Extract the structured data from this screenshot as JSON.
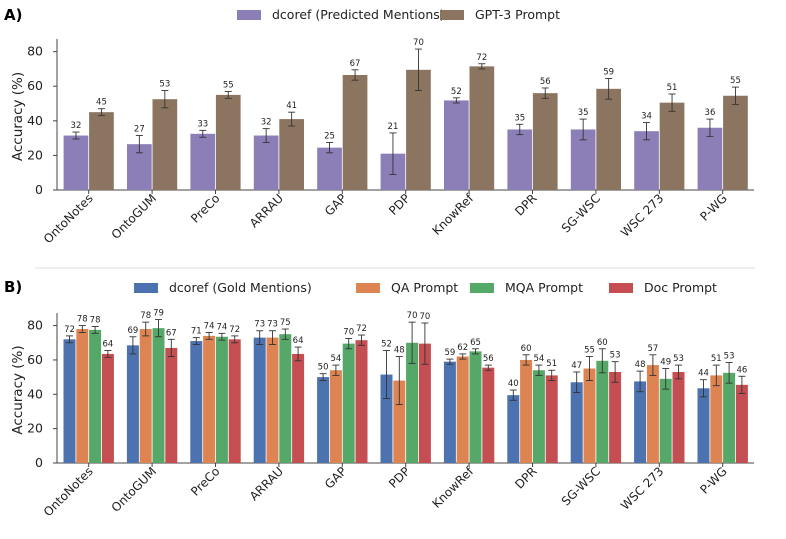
{
  "figure": {
    "separator": true
  },
  "chart_data": [
    {
      "type": "bar",
      "panel_label": "A)",
      "categories": [
        "OntoNotes",
        "OntoGUM",
        "PreCo",
        "ARRAU",
        "GAP",
        "PDP",
        "KnowRef",
        "DPR",
        "SG-WSC",
        "WSC 273",
        "P-WG"
      ],
      "series": [
        {
          "name": "dcoref (Predicted Mentions)",
          "color": "#8c7fb8",
          "values": [
            31.5,
            26.5,
            32.5,
            31.5,
            24.5,
            21,
            51.8,
            35,
            35,
            34,
            36
          ],
          "labels": [
            "32",
            "27",
            "33",
            "32",
            "25",
            "21",
            "52",
            "35",
            "35",
            "34",
            "36"
          ],
          "errors": [
            2,
            5,
            2,
            4,
            3,
            12,
            1.5,
            3,
            6,
            5,
            5
          ]
        },
        {
          "name": "GPT-3 Prompt",
          "color": "#8b7560",
          "values": [
            45,
            52.5,
            55,
            41,
            66.5,
            69.5,
            71.5,
            56,
            58.5,
            50.5,
            54.5
          ],
          "labels": [
            "45",
            "53",
            "55",
            "41",
            "67",
            "70",
            "72",
            "56",
            "59",
            "51",
            "55"
          ],
          "errors": [
            2,
            5,
            2,
            4,
            3,
            12,
            1.5,
            3,
            6,
            5,
            5
          ]
        }
      ],
      "ylabel": "Accuracy (%)",
      "ylim": [
        0,
        85
      ],
      "yticks": [
        0,
        20,
        40,
        60,
        80
      ],
      "legend": "top-center"
    },
    {
      "type": "bar",
      "panel_label": "B)",
      "categories": [
        "OntoNotes",
        "OntoGUM",
        "PreCo",
        "ARRAU",
        "GAP",
        "PDP",
        "KnowRef",
        "DPR",
        "SG-WSC",
        "WSC 273",
        "P-WG"
      ],
      "series": [
        {
          "name": "dcoref (Gold Mentions)",
          "color": "#4c72b0",
          "values": [
            72,
            68.5,
            71,
            73,
            50,
            51.5,
            59,
            39.5,
            47,
            47.5,
            43.5
          ],
          "labels": [
            "72",
            "69",
            "71",
            "73",
            "50",
            "52",
            "59",
            "40",
            "47",
            "48",
            "44"
          ],
          "errors": [
            2,
            5,
            2,
            4,
            2,
            14,
            1.5,
            3,
            6,
            6,
            5
          ]
        },
        {
          "name": "QA Prompt",
          "color": "#dd8452",
          "values": [
            78,
            78,
            74,
            73,
            54,
            48,
            62,
            60,
            55,
            57,
            51
          ],
          "labels": [
            "78",
            "78",
            "74",
            "73",
            "54",
            "48",
            "62",
            "60",
            "55",
            "57",
            "51"
          ],
          "errors": [
            2,
            4,
            2,
            4,
            3,
            14,
            1.5,
            3,
            7,
            6,
            6
          ]
        },
        {
          "name": "MQA Prompt",
          "color": "#55a868",
          "values": [
            77.5,
            78.5,
            73.5,
            75,
            69.5,
            70,
            65,
            54,
            59.5,
            49,
            52.5
          ],
          "labels": [
            "78",
            "79",
            "74",
            "75",
            "70",
            "70",
            "65",
            "54",
            "60",
            "49",
            "53"
          ],
          "errors": [
            2,
            5,
            2,
            3,
            3,
            12,
            1.5,
            3,
            7,
            6,
            6
          ]
        },
        {
          "name": "Doc Prompt",
          "color": "#c44e52",
          "values": [
            63.5,
            67,
            72,
            63.5,
            71.5,
            69.5,
            55.5,
            51,
            53,
            53,
            45.5
          ],
          "labels": [
            "64",
            "67",
            "72",
            "64",
            "72",
            "70",
            "56",
            "51",
            "53",
            "53",
            "46"
          ],
          "errors": [
            2,
            5,
            2,
            4,
            3,
            12,
            1.5,
            3,
            6,
            4,
            5
          ]
        }
      ],
      "ylabel": "Accuracy (%)",
      "ylim": [
        0,
        85
      ],
      "yticks": [
        0,
        20,
        40,
        60,
        80
      ],
      "legend": "top-center"
    }
  ]
}
